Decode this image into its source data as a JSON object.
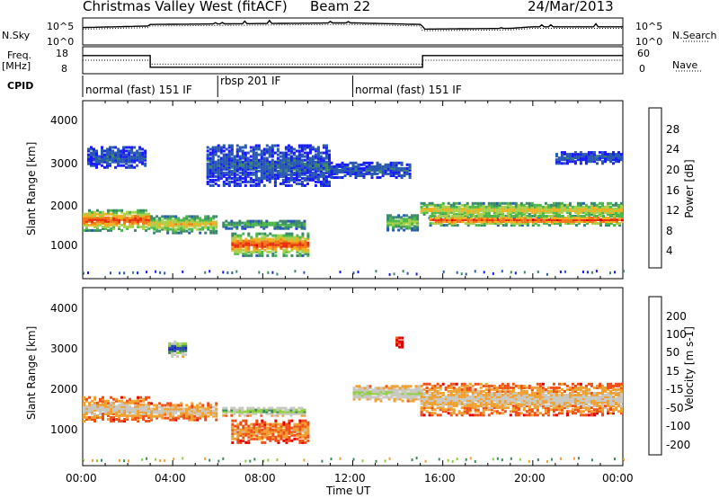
{
  "header": {
    "station": "Christmas Valley West (fitACF)",
    "beam": "Beam 22",
    "date": "24/Mar/2013"
  },
  "left_labels": {
    "nsky": "N.Sky",
    "freq": "Freq.",
    "freq_unit": "[MHz]",
    "cpid": "CPID"
  },
  "right_labels": {
    "nsearch": "N.Search",
    "nave": "Nave"
  },
  "cpid_segments": [
    {
      "label": "normal (fast) 151 IF",
      "start": 0,
      "end": 6
    },
    {
      "label": "rbsp 201 IF",
      "start": 6,
      "end": 12
    },
    {
      "label": "normal (fast) 151 IF",
      "start": 12,
      "end": 24
    }
  ],
  "colors": {
    "power": [
      "#1a1aff",
      "#2a5ab0",
      "#3a8a6a",
      "#4cb84c",
      "#a8d04a",
      "#f0b020",
      "#f07818",
      "#e83010",
      "#e00000"
    ],
    "velocity": [
      "#e00000",
      "#f05018",
      "#f0a030",
      "#c8c8c0",
      "#c8c8c0",
      "#90d040",
      "#3a8a5a",
      "#2a4aa8",
      "#1a1acc"
    ]
  },
  "chart_data": [
    {
      "type": "line",
      "name": "sky-noise-search",
      "ylabel": "N.Sky",
      "yticks_left": [
        "10^5",
        "10^0"
      ],
      "yticks_right": [
        "10^5",
        "10^0"
      ],
      "x_hours": [
        0,
        2.9,
        3.0,
        11.5,
        12,
        15.0,
        15.1,
        19,
        20,
        24
      ],
      "sky_log": [
        2.0,
        2.2,
        2.4,
        2.6,
        2.6,
        2.4,
        1.8,
        1.9,
        2.1,
        2.1
      ],
      "search_log": [
        1.8,
        2.0,
        2.2,
        2.4,
        2.4,
        2.2,
        1.6,
        1.7,
        1.9,
        1.9
      ]
    },
    {
      "type": "line",
      "name": "frequency-nave",
      "ylabel": "Freq. [MHz]",
      "yticks_left": [
        "18",
        "8"
      ],
      "yticks_right": [
        "60",
        "0"
      ],
      "freq_steps": [
        {
          "start": 0,
          "end": 3.0,
          "value": 15
        },
        {
          "start": 3.0,
          "end": 15.1,
          "value": 10
        },
        {
          "start": 15.1,
          "end": 24,
          "value": 15
        }
      ],
      "nave_steps": [
        {
          "start": 0,
          "end": 3.0,
          "value": 30
        },
        {
          "start": 3.0,
          "end": 15.1,
          "value": 20
        },
        {
          "start": 15.1,
          "end": 24,
          "value": 30
        }
      ]
    },
    {
      "type": "heatmap",
      "name": "power",
      "ylabel": "Slant Range [km]",
      "cbar_label": "Power [dB]",
      "cbar_ticks": [
        "4",
        "8",
        "12",
        "16",
        "20",
        "24",
        "28"
      ],
      "yticks": [
        "1000",
        "2000",
        "3000",
        "4000"
      ],
      "ylim": [
        200,
        4600
      ],
      "xlim_hours": [
        0,
        24
      ],
      "bands": [
        {
          "t0": 0.0,
          "t1": 3.0,
          "center": 1650,
          "width": 260,
          "level": 7
        },
        {
          "t0": 3.0,
          "t1": 6.0,
          "center": 1550,
          "width": 220,
          "level": 5
        },
        {
          "t0": 0.2,
          "t1": 2.8,
          "center": 3200,
          "width": 250,
          "level": 1
        },
        {
          "t0": 5.5,
          "t1": 11.0,
          "center": 3000,
          "width": 500,
          "level": 1
        },
        {
          "t0": 6.2,
          "t1": 9.8,
          "center": 1550,
          "width": 110,
          "level": 3
        },
        {
          "t0": 6.6,
          "t1": 10.0,
          "center": 1050,
          "width": 280,
          "level": 7
        },
        {
          "t0": 11.0,
          "t1": 14.5,
          "center": 2900,
          "width": 200,
          "level": 1
        },
        {
          "t0": 13.5,
          "t1": 14.9,
          "center": 1600,
          "width": 200,
          "level": 4
        },
        {
          "t0": 15.0,
          "t1": 24.0,
          "center": 1900,
          "width": 200,
          "level": 5
        },
        {
          "t0": 15.4,
          "t1": 24.0,
          "center": 1650,
          "width": 130,
          "level": 7
        },
        {
          "t0": 21.0,
          "t1": 24.0,
          "center": 3200,
          "width": 150,
          "level": 1
        }
      ]
    },
    {
      "type": "heatmap",
      "name": "velocity",
      "ylabel": "Slant Range [km]",
      "cbar_label": "Velocity [m s-1]",
      "cbar_ticks": [
        "-200",
        "-100",
        "-50",
        "-15",
        "15",
        "50",
        "100",
        "200"
      ],
      "yticks": [
        "1000",
        "2000",
        "3000",
        "4000"
      ],
      "ylim": [
        200,
        4600
      ],
      "xlim_hours": [
        0,
        24
      ],
      "xticks": [
        "00:00",
        "04:00",
        "08:00",
        "12:00",
        "16:00",
        "20:00",
        "00:00"
      ],
      "xlabel": "Time UT",
      "bands": [
        {
          "t0": 0.0,
          "t1": 3.0,
          "center": 1600,
          "width": 300,
          "level": 3
        },
        {
          "t0": 3.0,
          "t1": 6.0,
          "center": 1550,
          "width": 220,
          "level": 3
        },
        {
          "t0": 3.8,
          "t1": 4.6,
          "center": 3100,
          "width": 200,
          "level": 8
        },
        {
          "t0": 6.6,
          "t1": 10.0,
          "center": 1050,
          "width": 280,
          "level": 2
        },
        {
          "t0": 6.2,
          "t1": 9.8,
          "center": 1550,
          "width": 110,
          "level": 6
        },
        {
          "t0": 12.0,
          "t1": 15.0,
          "center": 2000,
          "width": 200,
          "level": 5
        },
        {
          "t0": 13.9,
          "t1": 14.2,
          "center": 3250,
          "width": 120,
          "level": 0
        },
        {
          "t0": 15.0,
          "t1": 24.0,
          "center": 1850,
          "width": 400,
          "level": 3
        }
      ]
    }
  ]
}
